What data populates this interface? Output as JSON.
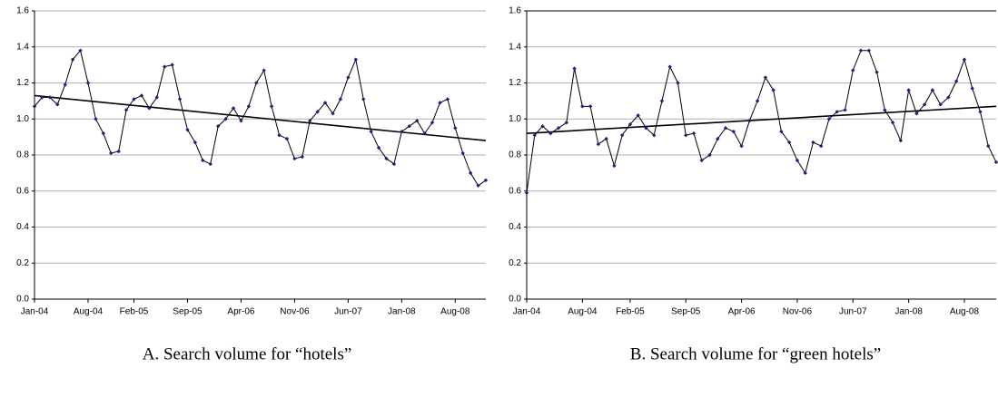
{
  "chart_data": [
    {
      "type": "line",
      "caption": "A.  Search volume for “hotels”",
      "categories": [
        "Jan-04",
        null,
        null,
        null,
        null,
        null,
        null,
        "Aug-04",
        null,
        null,
        null,
        null,
        null,
        "Feb-05",
        null,
        null,
        null,
        null,
        null,
        null,
        "Sep-05",
        null,
        null,
        null,
        null,
        null,
        null,
        "Apr-06",
        null,
        null,
        null,
        null,
        null,
        null,
        "Nov-06",
        null,
        null,
        null,
        null,
        null,
        null,
        "Jun-07",
        null,
        null,
        null,
        null,
        null,
        null,
        "Jan-08",
        null,
        null,
        null,
        null,
        null,
        null,
        "Aug-08",
        null,
        null,
        null,
        null
      ],
      "values": [
        1.07,
        1.12,
        1.12,
        1.08,
        1.19,
        1.33,
        1.38,
        1.2,
        1.0,
        0.92,
        0.81,
        0.82,
        1.05,
        1.11,
        1.13,
        1.06,
        1.12,
        1.29,
        1.3,
        1.11,
        0.94,
        0.87,
        0.77,
        0.75,
        0.96,
        1.0,
        1.06,
        0.99,
        1.07,
        1.2,
        1.27,
        1.07,
        0.91,
        0.89,
        0.78,
        0.79,
        0.99,
        1.04,
        1.09,
        1.03,
        1.11,
        1.23,
        1.33,
        1.11,
        0.93,
        0.84,
        0.78,
        0.75,
        0.93,
        0.96,
        0.99,
        0.92,
        0.98,
        1.09,
        1.11,
        0.95,
        0.81,
        0.7,
        0.63,
        0.66
      ],
      "trend": [
        1.13,
        0.88
      ],
      "color": "#000000",
      "marker_color": "#1f1f7a",
      "ylim": [
        0,
        1.6
      ],
      "yticks": [
        {
          "value": 0,
          "label": "0.0"
        },
        0.2,
        0.4,
        0.6,
        0.8,
        {
          "value": 1,
          "label": "1.0"
        },
        1.2,
        1.4,
        1.6
      ],
      "grid": true
    },
    {
      "type": "line",
      "caption": "B.   Search volume for “green hotels”",
      "categories": [
        "Jan-04",
        null,
        null,
        null,
        null,
        null,
        null,
        "Aug-04",
        null,
        null,
        null,
        null,
        null,
        "Feb-05",
        null,
        null,
        null,
        null,
        null,
        null,
        "Sep-05",
        null,
        null,
        null,
        null,
        null,
        null,
        "Apr-06",
        null,
        null,
        null,
        null,
        null,
        null,
        "Nov-06",
        null,
        null,
        null,
        null,
        null,
        null,
        "Jun-07",
        null,
        null,
        null,
        null,
        null,
        null,
        "Jan-08",
        null,
        null,
        null,
        null,
        null,
        null,
        "Aug-08",
        null,
        null,
        null,
        null
      ],
      "values": [
        0.59,
        0.91,
        0.96,
        0.92,
        0.95,
        0.98,
        1.28,
        1.07,
        1.07,
        0.86,
        0.89,
        0.74,
        0.91,
        0.97,
        1.02,
        0.95,
        0.91,
        1.1,
        1.29,
        1.2,
        0.91,
        0.92,
        0.77,
        0.8,
        0.89,
        0.95,
        0.93,
        0.85,
        0.99,
        1.1,
        1.23,
        1.16,
        0.93,
        0.87,
        0.77,
        0.7,
        0.87,
        0.85,
        1.0,
        1.04,
        1.05,
        1.27,
        1.38,
        1.38,
        1.26,
        1.05,
        0.98,
        0.88,
        1.16,
        1.03,
        1.08,
        1.16,
        1.08,
        1.12,
        1.21,
        1.33,
        1.17,
        1.04,
        0.85,
        0.76
      ],
      "trend": [
        0.92,
        1.07
      ],
      "color": "#000000",
      "marker_color": "#1f1f7a",
      "ylim": [
        0,
        1.6
      ],
      "yticks": [
        {
          "value": 0,
          "label": "0.0"
        },
        0.2,
        0.4,
        0.6,
        0.8,
        {
          "value": 1,
          "label": "1.0"
        },
        1.2,
        1.4,
        1.6
      ],
      "grid": true
    }
  ]
}
